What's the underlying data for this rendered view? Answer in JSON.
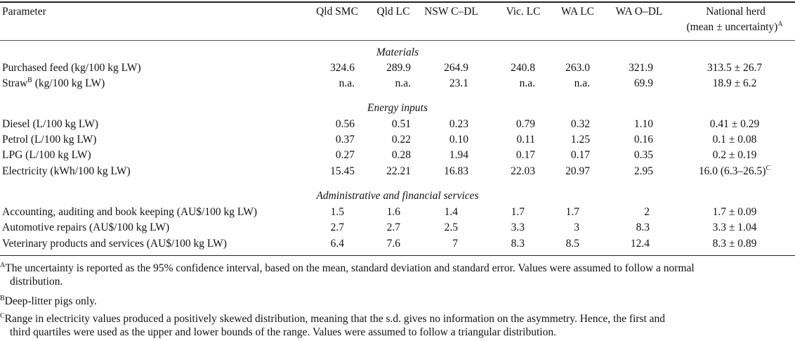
{
  "columns": {
    "parameter": "Parameter",
    "qld_smc": "Qld SMC",
    "qld_lc": "Qld LC",
    "nsw_cdl": "NSW C–DL",
    "vic_lc": "Vic. LC",
    "wa_lc": "WA LC",
    "wa_odl": "WA O–DL",
    "national_line1": "National herd",
    "national_line2": "(mean ± uncertainty)",
    "national_sup": "A"
  },
  "sections": {
    "materials": "Materials",
    "energy": "Energy inputs",
    "admin": "Administrative and financial services"
  },
  "rows": {
    "purchased_feed": {
      "label": "Purchased feed (kg/100 kg LW)",
      "values": [
        "324.6",
        "289.9",
        "264.9",
        "240.8",
        "263.0",
        "321.9"
      ],
      "national": "313.5 ± 26.7"
    },
    "straw": {
      "label_pre": "Straw",
      "label_sup": "B",
      "label_post": " (kg/100 kg LW)",
      "values": [
        "n.a.",
        "n.a.",
        "23.1",
        "n.a.",
        "n.a.",
        "69.9"
      ],
      "national": "18.9 ± 6.2"
    },
    "diesel": {
      "label": "Diesel (L/100 kg LW)",
      "values": [
        "0.56",
        "0.51",
        "0.23",
        "0.79",
        "0.32",
        "1.10"
      ],
      "national": "0.41 ± 0.29"
    },
    "petrol": {
      "label": "Petrol (L/100 kg LW)",
      "values": [
        "0.37",
        "0.22",
        "0.10",
        "0.11",
        "1.25",
        "0.16"
      ],
      "national": "0.1 ± 0.08"
    },
    "lpg": {
      "label": "LPG (L/100 kg LW)",
      "values": [
        "0.27",
        "0.28",
        "1.94",
        "0.17",
        "0.17",
        "0.35"
      ],
      "national": "0.2 ± 0.19"
    },
    "electricity": {
      "label": "Electricity (kWh/100 kg LW)",
      "values": [
        "15.45",
        "22.21",
        "16.83",
        "22.03",
        "20.97",
        "2.95"
      ],
      "national": "16.0 (6.3–26.5)",
      "national_sup": "C"
    },
    "accounting": {
      "label": "Accounting, auditing and book keeping (AU$/100 kg LW)",
      "values": [
        "1.5",
        "1.6",
        "1.4",
        "1.7",
        "1.7",
        "2"
      ],
      "national": "1.7 ± 0.09"
    },
    "automotive": {
      "label": "Automotive repairs (AU$/100 kg LW)",
      "values": [
        "2.7",
        "2.7",
        "2.5",
        "3.3",
        "3",
        "8.3"
      ],
      "national": "3.3 ± 1.04"
    },
    "veterinary": {
      "label": "Veterinary products and services (AU$/100 kg LW)",
      "values": [
        "6.4",
        "7.6",
        "7",
        "8.3",
        "8.5",
        "12.4"
      ],
      "national": "8.3 ± 0.89"
    }
  },
  "footnotes": {
    "a_sup": "A",
    "a_line1": "The uncertainty is reported as the 95% confidence interval, based on the mean, standard deviation and standard error. Values were assumed to follow a normal",
    "a_line2": "distribution.",
    "b_sup": "B",
    "b_text": "Deep-litter pigs only.",
    "c_sup": "C",
    "c_line1": "Range in electricity values produced a positively skewed distribution, meaning that the s.d. gives no information on the asymmetry. Hence, the first and",
    "c_line2": "third quartiles were used as the upper and lower bounds of the range. Values were assumed to follow a triangular distribution."
  }
}
